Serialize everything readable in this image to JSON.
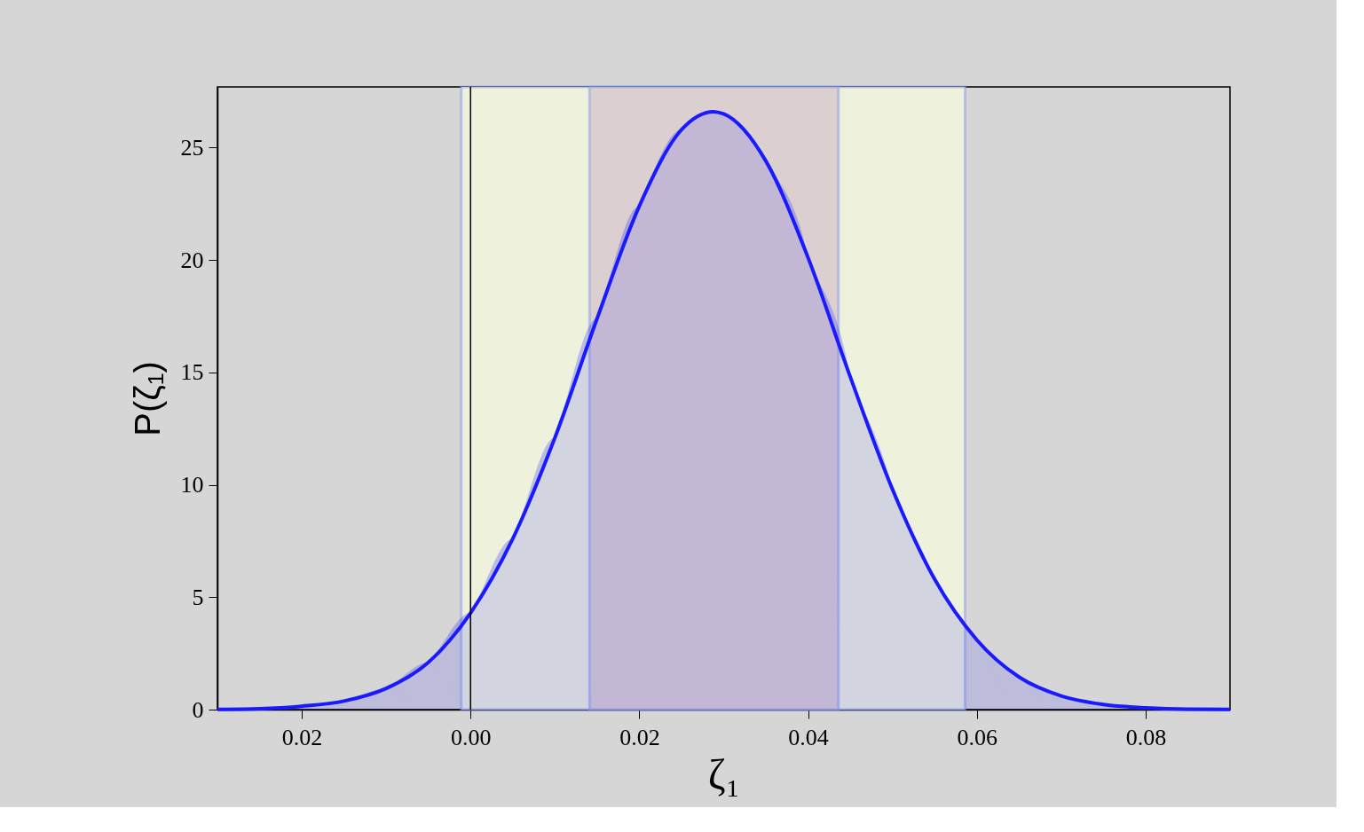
{
  "chart_data": {
    "type": "area",
    "xlabel": "ζ₁",
    "ylabel": "P(ζ₁)",
    "x": [
      -0.03,
      -0.025,
      -0.02,
      -0.015,
      -0.01,
      -0.005,
      0,
      0.005,
      0.01,
      0.015,
      0.02,
      0.025,
      0.0288,
      0.03,
      0.035,
      0.04,
      0.045,
      0.05,
      0.055,
      0.06,
      0.065,
      0.07,
      0.075,
      0.08,
      0.085,
      0.09
    ],
    "series": [
      {
        "color": "#1a1aff",
        "values": [
          0.01,
          0.04,
          0.15,
          0.38,
          0.94,
          2.1,
          4.3,
          7.6,
          12.1,
          17.4,
          22.4,
          25.8,
          26.6,
          26.5,
          24.4,
          20.1,
          14.8,
          9.8,
          5.8,
          3.1,
          1.45,
          0.61,
          0.23,
          0.08,
          0.02,
          0.01
        ]
      }
    ],
    "xlim": [
      -0.03,
      0.09
    ],
    "ylim": [
      0,
      27.7
    ],
    "xticks": [
      {
        "value": -0.02,
        "label": "0.02"
      },
      {
        "value": 0,
        "label": "0.00"
      },
      0.02,
      0.04,
      0.06,
      0.08
    ],
    "yticks": [
      0,
      5,
      10,
      15,
      20,
      25
    ],
    "bands": [
      {
        "axis": "x",
        "from": -0.0011,
        "to": 0.0586,
        "color": "#eef2dc"
      },
      {
        "axis": "x",
        "from": 0.0141,
        "to": 0.0436,
        "color": "#dccfcf"
      }
    ],
    "ref_lines": [
      {
        "axis": "x",
        "value": 0,
        "color": "#000000"
      }
    ],
    "grid": false
  }
}
